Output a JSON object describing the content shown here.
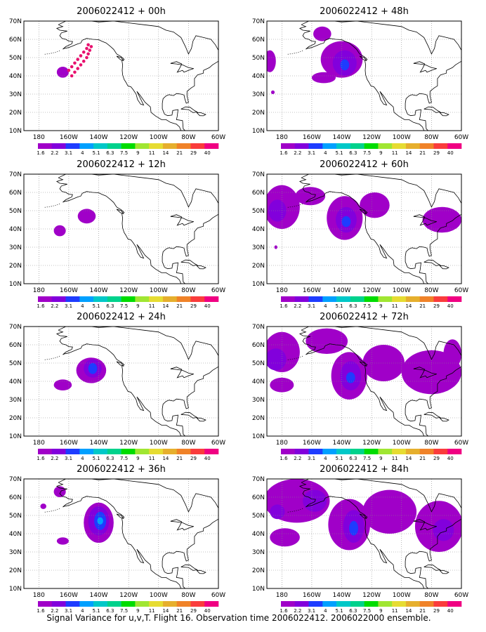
{
  "caption": "Signal Variance for u,v,T. Flight 16. Observation time 2006022412. 2006022000 ensemble.",
  "map": {
    "lon_labels": [
      "180",
      "160W",
      "140W",
      "120W",
      "100W",
      "80W",
      "60W"
    ],
    "lat_labels": [
      "10N",
      "20N",
      "30N",
      "40N",
      "50N",
      "60N",
      "70N"
    ],
    "lon_range": [
      -190,
      -60
    ],
    "lat_range": [
      10,
      70
    ],
    "grid": "dotted"
  },
  "colorbar": {
    "levels": [
      "1.6",
      "2.2",
      "3.1",
      "4",
      "5.1",
      "6.3",
      "7.5",
      "9",
      "11",
      "14",
      "21",
      "29",
      "40"
    ],
    "colors": [
      "#a000c8",
      "#8200dc",
      "#1e3cff",
      "#00a0ff",
      "#00c8c8",
      "#00d28c",
      "#00dc00",
      "#a0e632",
      "#e6dc32",
      "#e6af2d",
      "#f08228",
      "#fa3c3c",
      "#f00082"
    ]
  },
  "panels": [
    {
      "title": "2006022412 + 00h",
      "column": "left",
      "row": 1,
      "obs_points": [
        [
          -160,
          43
        ],
        [
          -158,
          45
        ],
        [
          -156,
          47
        ],
        [
          -154,
          49
        ],
        [
          -152,
          51
        ],
        [
          -150,
          53
        ],
        [
          -148,
          55
        ],
        [
          -147,
          57
        ],
        [
          -158,
          40
        ],
        [
          -156,
          42
        ],
        [
          -154,
          44
        ],
        [
          -152,
          46
        ],
        [
          -150,
          48
        ],
        [
          -148,
          50
        ],
        [
          -147,
          52
        ],
        [
          -146,
          54
        ],
        [
          -145,
          56
        ]
      ],
      "blobs": [
        {
          "lon": -164,
          "lat": 42,
          "rx": 4,
          "ry": 3,
          "level": 1
        }
      ]
    },
    {
      "title": "2006022412 + 12h",
      "column": "left",
      "row": 2,
      "blobs": [
        {
          "lon": -166,
          "lat": 39,
          "rx": 4,
          "ry": 3,
          "level": 1
        },
        {
          "lon": -148,
          "lat": 47,
          "rx": 6,
          "ry": 4,
          "level": 1
        }
      ]
    },
    {
      "title": "2006022412 + 24h",
      "column": "left",
      "row": 3,
      "blobs": [
        {
          "lon": -164,
          "lat": 38,
          "rx": 6,
          "ry": 3,
          "level": 1
        },
        {
          "lon": -145,
          "lat": 46,
          "rx": 10,
          "ry": 7,
          "level": 1
        },
        {
          "lon": -144,
          "lat": 47,
          "rx": 6,
          "ry": 5,
          "level": 2
        },
        {
          "lon": -144,
          "lat": 47,
          "rx": 3,
          "ry": 3,
          "level": 3
        }
      ]
    },
    {
      "title": "2006022412 + 36h",
      "column": "left",
      "row": 4,
      "blobs": [
        {
          "lon": -166,
          "lat": 63,
          "rx": 4,
          "ry": 3,
          "level": 1
        },
        {
          "lon": -177,
          "lat": 55,
          "rx": 2,
          "ry": 1.5,
          "level": 1
        },
        {
          "lon": -164,
          "lat": 36,
          "rx": 4,
          "ry": 2,
          "level": 1
        },
        {
          "lon": -140,
          "lat": 46,
          "rx": 10,
          "ry": 11,
          "level": 1
        },
        {
          "lon": -140,
          "lat": 47,
          "rx": 7,
          "ry": 8,
          "level": 2
        },
        {
          "lon": -139,
          "lat": 47,
          "rx": 4,
          "ry": 5,
          "level": 3
        },
        {
          "lon": -139,
          "lat": 47,
          "rx": 2,
          "ry": 2,
          "level": 4
        }
      ]
    },
    {
      "title": "2006022412 + 48h",
      "column": "right",
      "row": 1,
      "blobs": [
        {
          "lon": -188,
          "lat": 48,
          "rx": 4,
          "ry": 6,
          "level": 1
        },
        {
          "lon": -140,
          "lat": 49,
          "rx": 14,
          "ry": 10,
          "level": 1
        },
        {
          "lon": -153,
          "lat": 63,
          "rx": 6,
          "ry": 4,
          "level": 1
        },
        {
          "lon": -152,
          "lat": 39,
          "rx": 8,
          "ry": 3,
          "level": 1
        },
        {
          "lon": -138,
          "lat": 47,
          "rx": 8,
          "ry": 7,
          "level": 2
        },
        {
          "lon": -138,
          "lat": 46,
          "rx": 3,
          "ry": 3,
          "level": 3
        },
        {
          "lon": -186,
          "lat": 31,
          "rx": 1.2,
          "ry": 1,
          "level": 1
        }
      ]
    },
    {
      "title": "2006022412 + 60h",
      "column": "right",
      "row": 2,
      "blobs": [
        {
          "lon": -180,
          "lat": 52,
          "rx": 12,
          "ry": 12,
          "level": 1
        },
        {
          "lon": -161,
          "lat": 58,
          "rx": 10,
          "ry": 5,
          "level": 1
        },
        {
          "lon": -138,
          "lat": 46,
          "rx": 12,
          "ry": 12,
          "level": 1
        },
        {
          "lon": -118,
          "lat": 53,
          "rx": 10,
          "ry": 7,
          "level": 1
        },
        {
          "lon": -73,
          "lat": 45,
          "rx": 13,
          "ry": 7,
          "level": 1
        },
        {
          "lon": -183,
          "lat": 50,
          "rx": 6,
          "ry": 6,
          "level": 2
        },
        {
          "lon": -137,
          "lat": 45,
          "rx": 7,
          "ry": 7,
          "level": 2
        },
        {
          "lon": -137,
          "lat": 44,
          "rx": 3,
          "ry": 3,
          "level": 3
        },
        {
          "lon": -184,
          "lat": 30,
          "rx": 1,
          "ry": 1,
          "level": 1
        }
      ]
    },
    {
      "title": "2006022412 + 72h",
      "column": "right",
      "row": 3,
      "blobs": [
        {
          "lon": -180,
          "lat": 56,
          "rx": 12,
          "ry": 11,
          "level": 1
        },
        {
          "lon": -150,
          "lat": 62,
          "rx": 14,
          "ry": 7,
          "level": 1
        },
        {
          "lon": -135,
          "lat": 43,
          "rx": 12,
          "ry": 13,
          "level": 1
        },
        {
          "lon": -112,
          "lat": 50,
          "rx": 14,
          "ry": 10,
          "level": 1
        },
        {
          "lon": -80,
          "lat": 45,
          "rx": 20,
          "ry": 12,
          "level": 1
        },
        {
          "lon": -66,
          "lat": 55,
          "rx": 6,
          "ry": 8,
          "level": 1
        },
        {
          "lon": -180,
          "lat": 38,
          "rx": 8,
          "ry": 4,
          "level": 1
        },
        {
          "lon": -184,
          "lat": 52,
          "rx": 7,
          "ry": 6,
          "level": 2
        },
        {
          "lon": -134,
          "lat": 43,
          "rx": 7,
          "ry": 8,
          "level": 2
        },
        {
          "lon": -134,
          "lat": 42,
          "rx": 3,
          "ry": 3,
          "level": 3
        }
      ]
    },
    {
      "title": "2006022412 + 84h",
      "column": "right",
      "row": 4,
      "blobs": [
        {
          "lon": -170,
          "lat": 58,
          "rx": 22,
          "ry": 12,
          "level": 1
        },
        {
          "lon": -135,
          "lat": 45,
          "rx": 14,
          "ry": 14,
          "level": 1
        },
        {
          "lon": -108,
          "lat": 52,
          "rx": 18,
          "ry": 12,
          "level": 1
        },
        {
          "lon": -75,
          "lat": 44,
          "rx": 16,
          "ry": 14,
          "level": 1
        },
        {
          "lon": -178,
          "lat": 38,
          "rx": 10,
          "ry": 5,
          "level": 1
        },
        {
          "lon": -158,
          "lat": 58,
          "rx": 8,
          "ry": 6,
          "level": 2
        },
        {
          "lon": -132,
          "lat": 44,
          "rx": 7,
          "ry": 9,
          "level": 2
        },
        {
          "lon": -132,
          "lat": 43,
          "rx": 3,
          "ry": 4,
          "level": 3
        },
        {
          "lon": -183,
          "lat": 52,
          "rx": 5,
          "ry": 4,
          "level": 2
        },
        {
          "lon": -72,
          "lat": 42,
          "rx": 7,
          "ry": 6,
          "level": 2
        }
      ]
    }
  ]
}
